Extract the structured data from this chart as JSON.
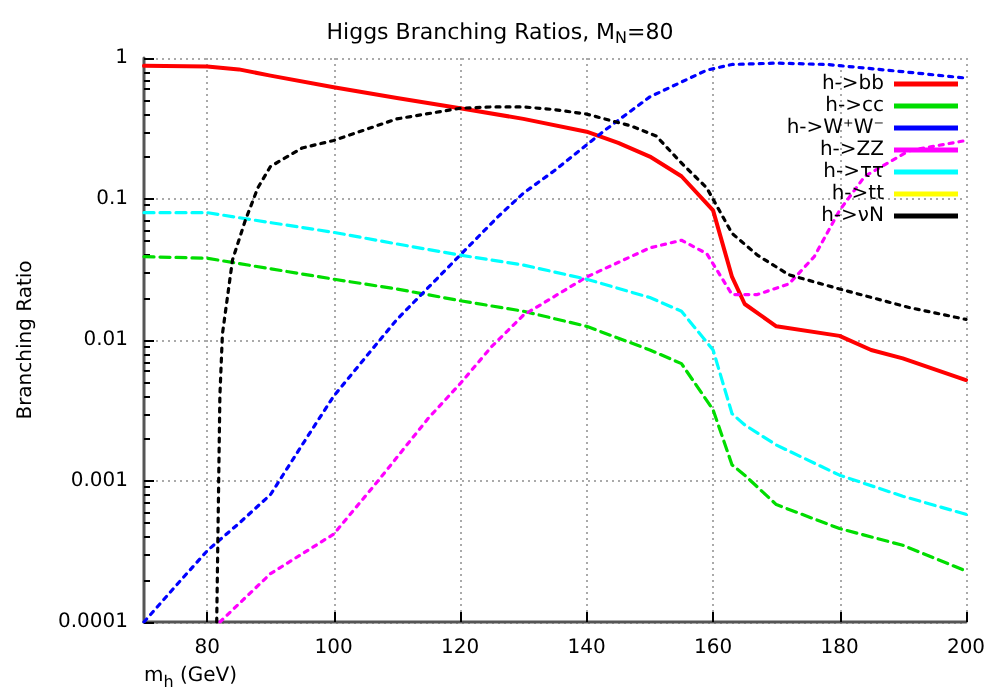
{
  "chart_data": {
    "type": "line",
    "title": "Higgs Branching Ratios, M$_{N}$=80",
    "xlabel": "m$_{h}$ (GeV)",
    "ylabel": "Branching Ratio",
    "log": "y",
    "grid": true,
    "legend": "top right",
    "marker": "none",
    "xlim": [
      70,
      200
    ],
    "xticks": [
      80,
      100,
      120,
      140,
      160,
      180,
      200
    ],
    "ylim": [
      0.0001,
      1
    ],
    "yticks": [
      0.0001,
      0.001,
      0.01,
      0.1,
      1
    ],
    "series": [
      {
        "name": "h->bb",
        "color": "#ff0000",
        "line_style": "solid",
        "x": [
          70,
          80,
          85,
          90,
          100,
          110,
          120,
          130,
          140,
          145,
          150,
          155,
          160,
          163,
          165,
          170,
          180,
          185,
          190,
          200
        ],
        "values": [
          0.88,
          0.87,
          0.83,
          0.75,
          0.62,
          0.52,
          0.44,
          0.37,
          0.3,
          0.25,
          0.2,
          0.145,
          0.083,
          0.028,
          0.018,
          0.0125,
          0.0107,
          0.0085,
          0.0074,
          0.0052
        ]
      },
      {
        "name": "h->cc",
        "color": "#00dd00",
        "line_style": "dashed",
        "x": [
          70,
          80,
          90,
          100,
          110,
          120,
          130,
          140,
          150,
          155,
          160,
          163,
          165,
          170,
          180,
          190,
          200
        ],
        "values": [
          0.039,
          0.038,
          0.032,
          0.027,
          0.023,
          0.019,
          0.016,
          0.0125,
          0.0085,
          0.0068,
          0.0032,
          0.0013,
          0.0011,
          0.00068,
          0.00046,
          0.00035,
          0.00023
        ]
      },
      {
        "name": "h->W⁺W⁻",
        "color": "#0000ff",
        "line_style": "dotted",
        "x": [
          70,
          75,
          80,
          85,
          90,
          95,
          100,
          106,
          110,
          120,
          126,
          130,
          135,
          143,
          150,
          159,
          163,
          170,
          178,
          190,
          200
        ],
        "values": [
          0.0001,
          0.00018,
          0.00032,
          0.0005,
          0.0008,
          0.0018,
          0.004,
          0.0085,
          0.014,
          0.04,
          0.075,
          0.11,
          0.16,
          0.31,
          0.53,
          0.82,
          0.9,
          0.92,
          0.9,
          0.8,
          0.72
        ]
      },
      {
        "name": "h->ZZ",
        "color": "#ff00ff",
        "line_style": "dotted",
        "x": [
          82,
          90,
          100,
          107,
          115,
          120,
          125,
          130,
          140,
          150,
          155,
          159,
          163,
          167,
          172,
          176,
          180,
          184,
          191,
          200
        ],
        "values": [
          0.0001,
          0.00022,
          0.00042,
          0.001,
          0.0028,
          0.0049,
          0.009,
          0.015,
          0.028,
          0.045,
          0.051,
          0.041,
          0.021,
          0.021,
          0.025,
          0.039,
          0.083,
          0.145,
          0.22,
          0.26
        ]
      },
      {
        "name": "h->ττ",
        "color": "#00ffff",
        "line_style": "dashed",
        "x": [
          70,
          80,
          90,
          100,
          110,
          120,
          130,
          140,
          150,
          155,
          160,
          163,
          165,
          170,
          180,
          190,
          200
        ],
        "values": [
          0.08,
          0.08,
          0.068,
          0.058,
          0.048,
          0.04,
          0.034,
          0.027,
          0.02,
          0.016,
          0.0085,
          0.003,
          0.0025,
          0.0018,
          0.0011,
          0.00078,
          0.00058
        ]
      },
      {
        "name": "h->tt",
        "color": "#ffff00",
        "line_style": "dotted"
      },
      {
        "name": "h->νN",
        "color": "#000000",
        "line_style": "dotted",
        "x": [
          81.5,
          82,
          82.4,
          84,
          86,
          88,
          90,
          95,
          100,
          110,
          120,
          125,
          130,
          135,
          140,
          147,
          151,
          155,
          159,
          163,
          167,
          172,
          180,
          191,
          200
        ],
        "values": [
          0.0001,
          0.004,
          0.011,
          0.037,
          0.07,
          0.12,
          0.17,
          0.23,
          0.26,
          0.37,
          0.44,
          0.45,
          0.45,
          0.43,
          0.4,
          0.33,
          0.28,
          0.18,
          0.12,
          0.057,
          0.04,
          0.029,
          0.023,
          0.017,
          0.014
        ]
      }
    ]
  }
}
